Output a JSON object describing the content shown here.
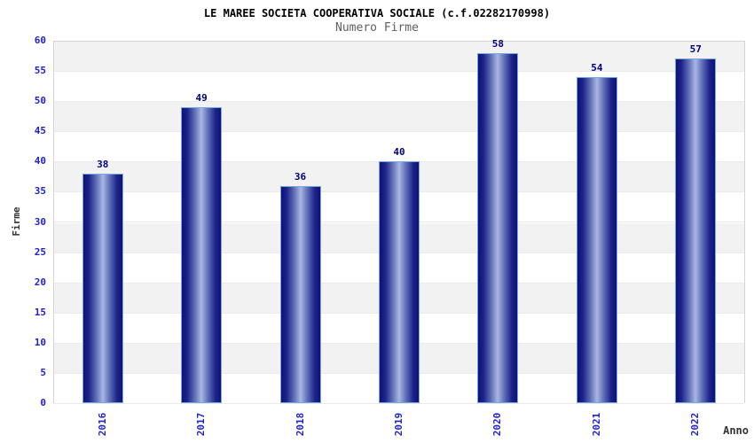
{
  "chart_data": {
    "type": "bar",
    "title": "LE MAREE SOCIETA COOPERATIVA SOCIALE (c.f.02282170998)",
    "subtitle": "Numero Firme",
    "xlabel": "Anno",
    "ylabel": "Firme",
    "categories": [
      "2016",
      "2017",
      "2018",
      "2019",
      "2020",
      "2021",
      "2022"
    ],
    "values": [
      38,
      49,
      36,
      40,
      58,
      54,
      57
    ],
    "ylim": [
      0,
      60
    ],
    "ytick_step": 5,
    "yticks": [
      0,
      5,
      10,
      15,
      20,
      25,
      30,
      35,
      40,
      45,
      50,
      55,
      60
    ],
    "grid": "alternating-horizontal-bands",
    "legend": "none",
    "colors": {
      "title_color": "#000000",
      "subtitle_color": "#5f5f5f",
      "axis_title_color": "#333333",
      "tick_label": "#2222cc",
      "value_label": "#000080",
      "band_gray": "#f2f2f2",
      "band_white": "#ffffff",
      "plot_border": "#d4d4d4",
      "bar_border": "#74aadd",
      "bar_dark": "#10107a",
      "bar_dark2": "#1c2488",
      "bar_mid": "#5f6fb8",
      "bar_light": "#aab6e2"
    }
  }
}
